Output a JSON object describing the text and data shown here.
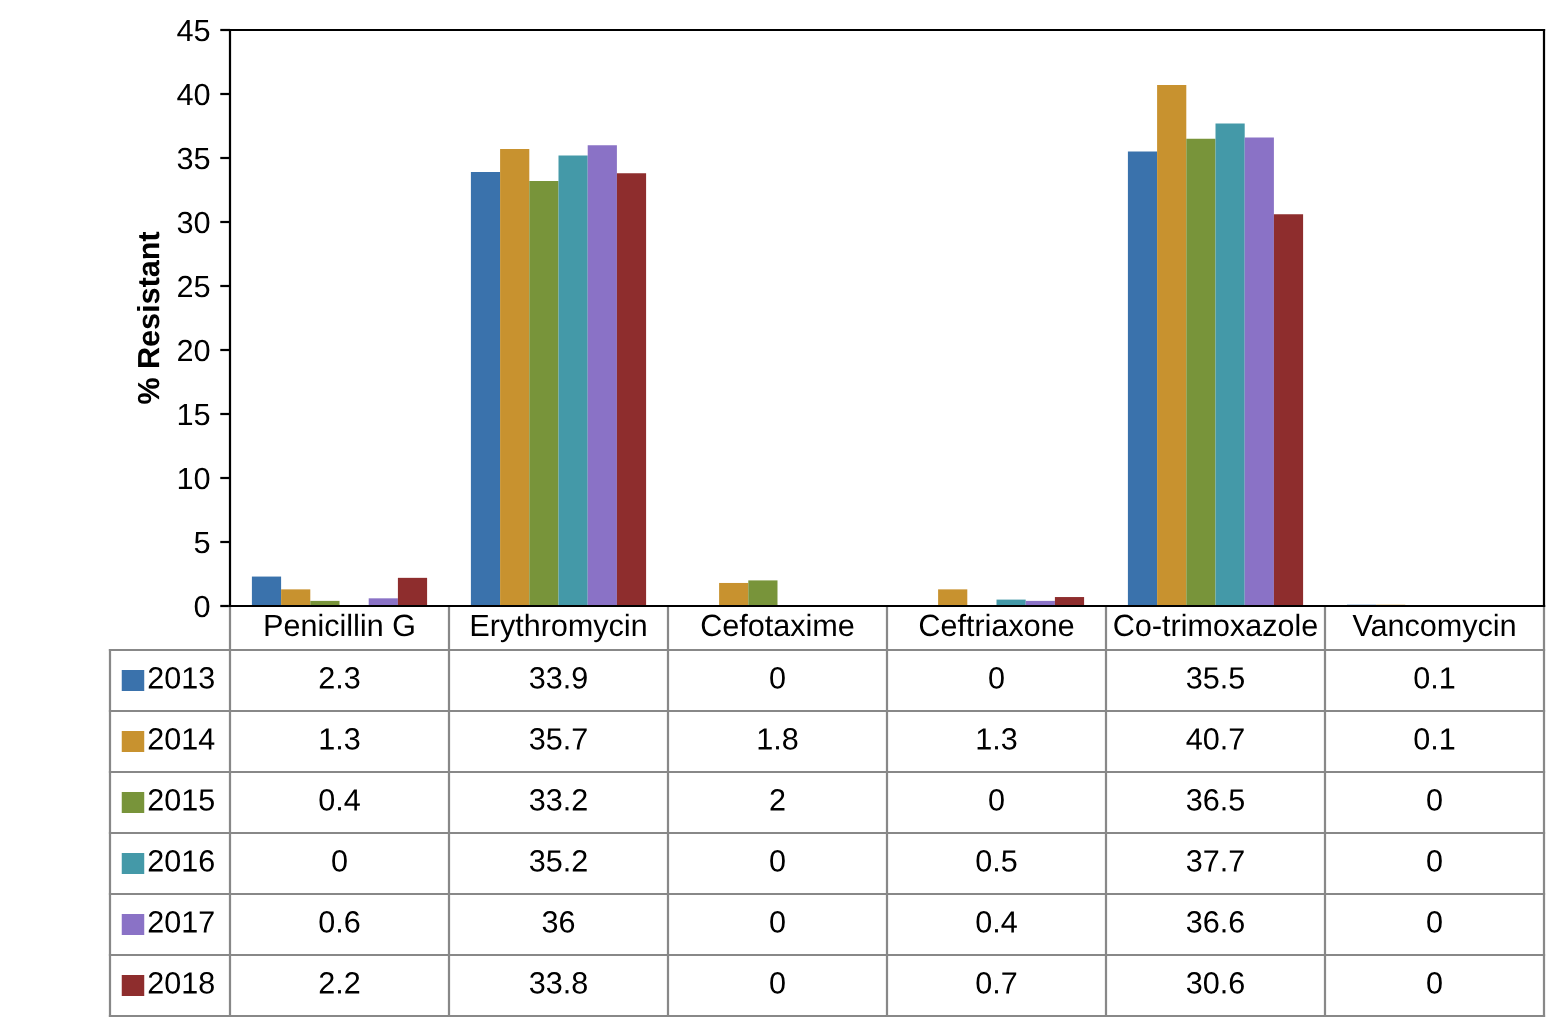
{
  "chart_data": {
    "type": "bar",
    "ylabel": "% Resistant",
    "categories": [
      "Penicillin G",
      "Erythromycin",
      "Cefotaxime",
      "Ceftriaxone",
      "Co-trimoxazole",
      "Vancomycin"
    ],
    "series": [
      {
        "name": "2013",
        "color": "#3a72ac",
        "values": [
          2.3,
          33.9,
          0,
          0,
          35.5,
          0.1
        ]
      },
      {
        "name": "2014",
        "color": "#c8922f",
        "values": [
          1.3,
          35.7,
          1.8,
          1.3,
          40.7,
          0.1
        ]
      },
      {
        "name": "2015",
        "color": "#78943a",
        "values": [
          0.4,
          33.2,
          2,
          0,
          36.5,
          0
        ]
      },
      {
        "name": "2016",
        "color": "#4499a8",
        "values": [
          0,
          35.2,
          0,
          0.5,
          37.7,
          0
        ]
      },
      {
        "name": "2017",
        "color": "#8a72c6",
        "values": [
          0.6,
          36,
          0,
          0.4,
          36.6,
          0
        ]
      },
      {
        "name": "2018",
        "color": "#8e2d2d",
        "values": [
          2.2,
          33.8,
          0,
          0.7,
          30.6,
          0
        ]
      }
    ],
    "ylim": [
      0,
      45
    ],
    "yticks": [
      0,
      5,
      10,
      15,
      20,
      25,
      30,
      35,
      40,
      45
    ],
    "grid": false,
    "legend": "bottom",
    "data_labels": true
  }
}
